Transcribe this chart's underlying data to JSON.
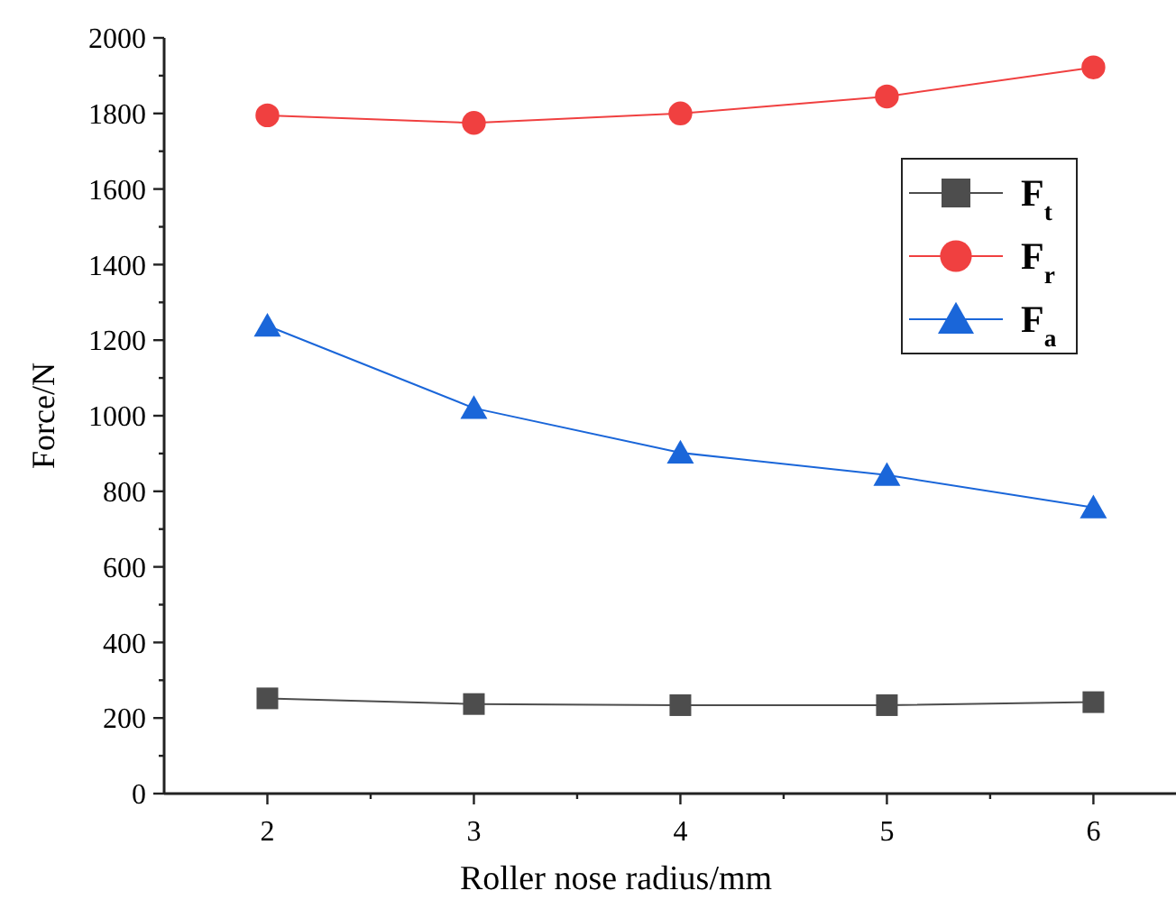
{
  "chart_data": {
    "type": "line",
    "xlabel": "Roller nose radius/mm",
    "ylabel": "Force/N",
    "x": [
      2,
      3,
      4,
      5,
      6
    ],
    "series": [
      {
        "name": "F$_{t}$",
        "color": "#4d4d4d",
        "marker": "square",
        "values": [
          252,
          237,
          234,
          234,
          242
        ]
      },
      {
        "name": "F$_{r}$",
        "color": "#f04040",
        "marker": "circle",
        "values": [
          1795,
          1775,
          1800,
          1845,
          1922
        ]
      },
      {
        "name": "F$_{a}$",
        "color": "#1a66d9",
        "marker": "triangle",
        "values": [
          1238,
          1020,
          902,
          843,
          757
        ]
      }
    ],
    "xlim": [
      1.5,
      6.4
    ],
    "xticks": [
      2,
      {
        "value": 2.5,
        "label": null
      },
      3,
      {
        "value": 3.5,
        "label": null
      },
      4,
      {
        "value": 4.5,
        "label": null
      },
      5,
      {
        "value": 5.5,
        "label": null
      },
      6
    ],
    "ylim": [
      0,
      2000
    ],
    "yticks": [
      0,
      {
        "value": 100,
        "label": null
      },
      200,
      {
        "value": 300,
        "label": null
      },
      400,
      {
        "value": 500,
        "label": null
      },
      600,
      {
        "value": 700,
        "label": null
      },
      800,
      {
        "value": 900,
        "label": null
      },
      1000,
      {
        "value": 1100,
        "label": null
      },
      1200,
      {
        "value": 1300,
        "label": null
      },
      1400,
      {
        "value": 1500,
        "label": null
      },
      1600,
      {
        "value": 1700,
        "label": null
      },
      1800,
      {
        "value": 1900,
        "label": null
      },
      2000
    ],
    "grid": false,
    "legend": "top right",
    "line_style": "solid"
  }
}
